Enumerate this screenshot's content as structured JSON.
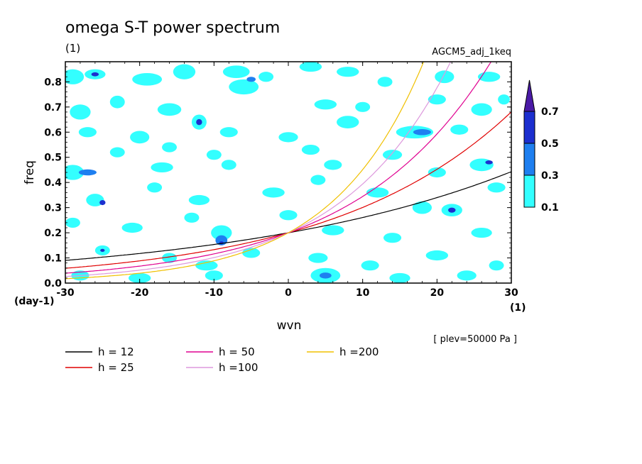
{
  "chart_data": {
    "type": "contour",
    "title": "omega S-T power spectrum",
    "subtitle_left": "(1)",
    "subtitle_right": "AGCM5_adj_1keq",
    "xlabel": "wvn",
    "ylabel": "freq",
    "x_unit_label": "(1)",
    "y_unit_label": "(day-1)",
    "xlim": [
      -30,
      30
    ],
    "ylim": [
      0,
      0.88
    ],
    "x_ticks": [
      "-30",
      "-20",
      "-10",
      "0",
      "10",
      "20",
      "30"
    ],
    "y_ticks": [
      "0.0",
      "0.1",
      "0.2",
      "0.3",
      "0.4",
      "0.5",
      "0.6",
      "0.7",
      "0.8"
    ],
    "annotation": "[ plev=50000 Pa ]",
    "colorbar": {
      "levels": [
        "0.1",
        "0.3",
        "0.5",
        "0.7"
      ],
      "colors": [
        "#33ffff",
        "#1e7ff0",
        "#1c2fcf",
        "#4a1aa6"
      ]
    },
    "dispersion_curves": [
      {
        "label": "h = 12",
        "h": 12,
        "color": "#000000"
      },
      {
        "label": "h = 25",
        "h": 25,
        "color": "#e00000"
      },
      {
        "label": "h = 50",
        "h": 50,
        "color": "#e00090"
      },
      {
        "label": "h =100",
        "h": 100,
        "color": "#dd99dd"
      },
      {
        "label": "h =200",
        "h": 200,
        "color": "#f0c000"
      }
    ],
    "contour_patches": [
      {
        "x": -29,
        "y": 0.82,
        "rx": 1.5,
        "ry": 0.03,
        "level": 0
      },
      {
        "x": -26,
        "y": 0.83,
        "rx": 1.4,
        "ry": 0.02,
        "level": 0
      },
      {
        "x": -26,
        "y": 0.83,
        "rx": 0.5,
        "ry": 0.008,
        "level": 2
      },
      {
        "x": -19,
        "y": 0.81,
        "rx": 2.0,
        "ry": 0.025,
        "level": 0
      },
      {
        "x": -14,
        "y": 0.84,
        "rx": 1.5,
        "ry": 0.03,
        "level": 0
      },
      {
        "x": -7,
        "y": 0.84,
        "rx": 1.8,
        "ry": 0.025,
        "level": 0
      },
      {
        "x": -3,
        "y": 0.82,
        "rx": 1.0,
        "ry": 0.02,
        "level": 0
      },
      {
        "x": 3,
        "y": 0.86,
        "rx": 1.5,
        "ry": 0.02,
        "level": 0
      },
      {
        "x": -6,
        "y": 0.78,
        "rx": 2.0,
        "ry": 0.03,
        "level": 0
      },
      {
        "x": -5,
        "y": 0.81,
        "rx": 0.6,
        "ry": 0.01,
        "level": 1
      },
      {
        "x": 8,
        "y": 0.84,
        "rx": 1.5,
        "ry": 0.02,
        "level": 0
      },
      {
        "x": 13,
        "y": 0.8,
        "rx": 1.0,
        "ry": 0.02,
        "level": 0
      },
      {
        "x": 21,
        "y": 0.82,
        "rx": 1.3,
        "ry": 0.025,
        "level": 0
      },
      {
        "x": 27,
        "y": 0.82,
        "rx": 1.5,
        "ry": 0.02,
        "level": 0
      },
      {
        "x": -28,
        "y": 0.68,
        "rx": 1.4,
        "ry": 0.03,
        "level": 0
      },
      {
        "x": -23,
        "y": 0.72,
        "rx": 1.0,
        "ry": 0.025,
        "level": 0
      },
      {
        "x": -16,
        "y": 0.69,
        "rx": 1.6,
        "ry": 0.025,
        "level": 0
      },
      {
        "x": -12,
        "y": 0.64,
        "rx": 1.0,
        "ry": 0.03,
        "level": 0
      },
      {
        "x": -12,
        "y": 0.64,
        "rx": 0.4,
        "ry": 0.012,
        "level": 2
      },
      {
        "x": 5,
        "y": 0.71,
        "rx": 1.5,
        "ry": 0.02,
        "level": 0
      },
      {
        "x": 10,
        "y": 0.7,
        "rx": 1.0,
        "ry": 0.02,
        "level": 0
      },
      {
        "x": 20,
        "y": 0.73,
        "rx": 1.2,
        "ry": 0.02,
        "level": 0
      },
      {
        "x": 26,
        "y": 0.69,
        "rx": 1.4,
        "ry": 0.025,
        "level": 0
      },
      {
        "x": 29,
        "y": 0.73,
        "rx": 0.8,
        "ry": 0.02,
        "level": 0
      },
      {
        "x": -27,
        "y": 0.6,
        "rx": 1.2,
        "ry": 0.02,
        "level": 0
      },
      {
        "x": -20,
        "y": 0.58,
        "rx": 1.3,
        "ry": 0.025,
        "level": 0
      },
      {
        "x": -8,
        "y": 0.6,
        "rx": 1.2,
        "ry": 0.02,
        "level": 0
      },
      {
        "x": 0,
        "y": 0.58,
        "rx": 1.3,
        "ry": 0.02,
        "level": 0
      },
      {
        "x": 8,
        "y": 0.64,
        "rx": 1.5,
        "ry": 0.025,
        "level": 0
      },
      {
        "x": 17,
        "y": 0.6,
        "rx": 2.5,
        "ry": 0.025,
        "level": 0
      },
      {
        "x": 18,
        "y": 0.6,
        "rx": 1.2,
        "ry": 0.012,
        "level": 1
      },
      {
        "x": 23,
        "y": 0.61,
        "rx": 1.2,
        "ry": 0.02,
        "level": 0
      },
      {
        "x": -23,
        "y": 0.52,
        "rx": 1.0,
        "ry": 0.02,
        "level": 0
      },
      {
        "x": -16,
        "y": 0.54,
        "rx": 1.0,
        "ry": 0.02,
        "level": 0
      },
      {
        "x": -10,
        "y": 0.51,
        "rx": 1.0,
        "ry": 0.02,
        "level": 0
      },
      {
        "x": 3,
        "y": 0.53,
        "rx": 1.2,
        "ry": 0.02,
        "level": 0
      },
      {
        "x": 14,
        "y": 0.51,
        "rx": 1.3,
        "ry": 0.02,
        "level": 0
      },
      {
        "x": 26,
        "y": 0.47,
        "rx": 1.6,
        "ry": 0.025,
        "level": 0
      },
      {
        "x": 27,
        "y": 0.48,
        "rx": 0.5,
        "ry": 0.008,
        "level": 2
      },
      {
        "x": -29,
        "y": 0.44,
        "rx": 1.5,
        "ry": 0.03,
        "level": 0
      },
      {
        "x": -27,
        "y": 0.44,
        "rx": 1.2,
        "ry": 0.012,
        "level": 1
      },
      {
        "x": -17,
        "y": 0.46,
        "rx": 1.5,
        "ry": 0.02,
        "level": 0
      },
      {
        "x": -8,
        "y": 0.47,
        "rx": 1.0,
        "ry": 0.02,
        "level": 0
      },
      {
        "x": 6,
        "y": 0.47,
        "rx": 1.2,
        "ry": 0.02,
        "level": 0
      },
      {
        "x": 20,
        "y": 0.44,
        "rx": 1.2,
        "ry": 0.02,
        "level": 0
      },
      {
        "x": -26,
        "y": 0.33,
        "rx": 1.2,
        "ry": 0.025,
        "level": 0
      },
      {
        "x": -25,
        "y": 0.32,
        "rx": 0.4,
        "ry": 0.01,
        "level": 2
      },
      {
        "x": -18,
        "y": 0.38,
        "rx": 1.0,
        "ry": 0.02,
        "level": 0
      },
      {
        "x": -12,
        "y": 0.33,
        "rx": 1.4,
        "ry": 0.02,
        "level": 0
      },
      {
        "x": -2,
        "y": 0.36,
        "rx": 1.5,
        "ry": 0.02,
        "level": 0
      },
      {
        "x": 4,
        "y": 0.41,
        "rx": 1.0,
        "ry": 0.02,
        "level": 0
      },
      {
        "x": 12,
        "y": 0.36,
        "rx": 1.5,
        "ry": 0.02,
        "level": 0
      },
      {
        "x": 18,
        "y": 0.3,
        "rx": 1.3,
        "ry": 0.025,
        "level": 0
      },
      {
        "x": 22,
        "y": 0.29,
        "rx": 1.4,
        "ry": 0.025,
        "level": 0
      },
      {
        "x": 22,
        "y": 0.29,
        "rx": 0.5,
        "ry": 0.01,
        "level": 2
      },
      {
        "x": 28,
        "y": 0.38,
        "rx": 1.2,
        "ry": 0.02,
        "level": 0
      },
      {
        "x": -29,
        "y": 0.24,
        "rx": 1.0,
        "ry": 0.02,
        "level": 0
      },
      {
        "x": -21,
        "y": 0.22,
        "rx": 1.4,
        "ry": 0.02,
        "level": 0
      },
      {
        "x": -13,
        "y": 0.26,
        "rx": 1.0,
        "ry": 0.02,
        "level": 0
      },
      {
        "x": -9,
        "y": 0.2,
        "rx": 1.4,
        "ry": 0.03,
        "level": 0
      },
      {
        "x": -9,
        "y": 0.17,
        "rx": 0.8,
        "ry": 0.02,
        "level": 1
      },
      {
        "x": -9,
        "y": 0.16,
        "rx": 0.3,
        "ry": 0.006,
        "level": 2
      },
      {
        "x": 0,
        "y": 0.27,
        "rx": 1.2,
        "ry": 0.02,
        "level": 0
      },
      {
        "x": 6,
        "y": 0.21,
        "rx": 1.5,
        "ry": 0.02,
        "level": 0
      },
      {
        "x": 14,
        "y": 0.18,
        "rx": 1.2,
        "ry": 0.02,
        "level": 0
      },
      {
        "x": 26,
        "y": 0.2,
        "rx": 1.4,
        "ry": 0.02,
        "level": 0
      },
      {
        "x": -25,
        "y": 0.13,
        "rx": 1.0,
        "ry": 0.02,
        "level": 0
      },
      {
        "x": -25,
        "y": 0.13,
        "rx": 0.3,
        "ry": 0.006,
        "level": 2
      },
      {
        "x": -16,
        "y": 0.1,
        "rx": 1.0,
        "ry": 0.02,
        "level": 0
      },
      {
        "x": -11,
        "y": 0.07,
        "rx": 1.5,
        "ry": 0.02,
        "level": 0
      },
      {
        "x": -5,
        "y": 0.12,
        "rx": 1.2,
        "ry": 0.02,
        "level": 0
      },
      {
        "x": 4,
        "y": 0.1,
        "rx": 1.3,
        "ry": 0.02,
        "level": 0
      },
      {
        "x": 11,
        "y": 0.07,
        "rx": 1.2,
        "ry": 0.02,
        "level": 0
      },
      {
        "x": 20,
        "y": 0.11,
        "rx": 1.5,
        "ry": 0.02,
        "level": 0
      },
      {
        "x": 28,
        "y": 0.07,
        "rx": 1.0,
        "ry": 0.02,
        "level": 0
      },
      {
        "x": -28,
        "y": 0.03,
        "rx": 1.2,
        "ry": 0.02,
        "level": 0
      },
      {
        "x": -20,
        "y": 0.02,
        "rx": 1.5,
        "ry": 0.02,
        "level": 0
      },
      {
        "x": -10,
        "y": 0.03,
        "rx": 1.2,
        "ry": 0.02,
        "level": 0
      },
      {
        "x": 5,
        "y": 0.03,
        "rx": 2.0,
        "ry": 0.03,
        "level": 0
      },
      {
        "x": 5,
        "y": 0.03,
        "rx": 0.8,
        "ry": 0.012,
        "level": 1
      },
      {
        "x": 15,
        "y": 0.02,
        "rx": 1.4,
        "ry": 0.02,
        "level": 0
      },
      {
        "x": 24,
        "y": 0.03,
        "rx": 1.3,
        "ry": 0.02,
        "level": 0
      }
    ]
  }
}
